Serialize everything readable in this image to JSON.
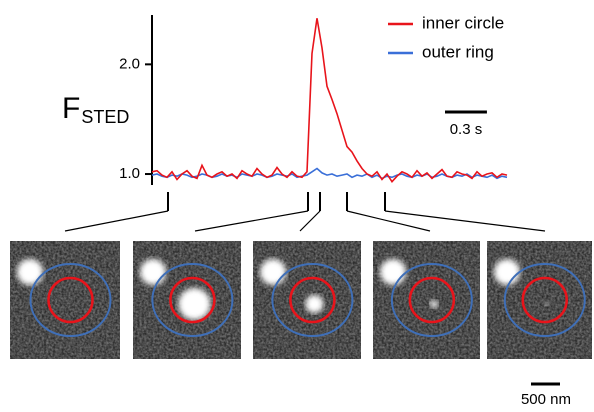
{
  "chart_data": {
    "type": "line",
    "y_label": "F",
    "y_label_subscript": "STED",
    "ylim": [
      0.9,
      2.45
    ],
    "yticks": [
      {
        "value": 1,
        "label": "1.0"
      },
      {
        "value": 2,
        "label": "2.0"
      }
    ],
    "xlim": [
      0,
      2.54
    ],
    "legend": "top-right",
    "scale_bar": {
      "value": 0.3,
      "label": "0.3 s"
    },
    "image_scale_bar_label": "500 nm",
    "series": [
      {
        "name": "inner circle",
        "color": "#e8141b",
        "values": [
          1.02,
          1.03,
          0.99,
          0.97,
          1.02,
          0.95,
          1.0,
          1.03,
          0.98,
          0.96,
          1.08,
          0.99,
          0.97,
          1.0,
          1.02,
          0.98,
          1.0,
          0.96,
          1.03,
          1.0,
          0.98,
          1.05,
          1.0,
          0.97,
          0.99,
          1.06,
          1.0,
          0.97,
          1.02,
          0.98,
          0.97,
          1.02,
          2.1,
          2.42,
          2.15,
          1.8,
          1.68,
          1.55,
          1.4,
          1.25,
          1.2,
          1.12,
          1.05,
          1.0,
          0.98,
          1.02,
          0.95,
          1.0,
          0.93,
          0.98,
          1.02,
          1.0,
          0.97,
          1.03,
          0.98,
          1.01,
          0.96,
          1.0,
          1.04,
          0.98,
          0.97,
          1.02,
          1.0,
          0.99,
          0.96,
          1.02,
          0.98,
          1.0,
          1.01,
          0.97,
          1.0,
          0.99
        ]
      },
      {
        "name": "outer ring",
        "color": "#3a6fd8",
        "values": [
          0.99,
          1.0,
          0.98,
          0.97,
          0.99,
          0.98,
          1.0,
          0.99,
          0.97,
          0.98,
          1.0,
          0.99,
          0.97,
          0.98,
          1.0,
          0.98,
          0.99,
          0.97,
          1.0,
          0.99,
          0.98,
          1.0,
          0.99,
          0.97,
          0.98,
          1.0,
          0.99,
          0.98,
          1.0,
          0.97,
          0.98,
          0.99,
          1.02,
          1.05,
          1.01,
          0.99,
          1.0,
          0.98,
          0.99,
          1.0,
          0.97,
          0.99,
          0.98,
          1.0,
          0.97,
          0.99,
          0.96,
          0.98,
          0.97,
          0.99,
          1.0,
          0.98,
          0.97,
          0.99,
          0.98,
          1.0,
          0.97,
          0.98,
          1.0,
          0.98,
          0.97,
          0.99,
          0.98,
          1.0,
          0.97,
          0.99,
          0.98,
          0.97,
          0.99,
          0.96,
          0.98,
          0.97
        ]
      }
    ]
  }
}
